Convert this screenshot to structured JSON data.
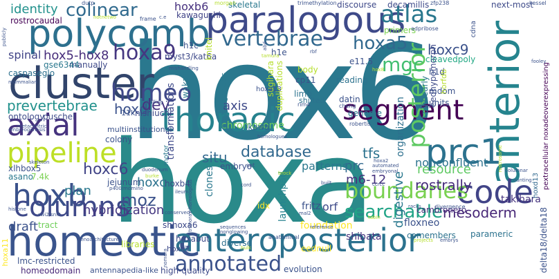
{
  "words": [
    {
      "text": "hox6",
      "color": "#2a788e"
    },
    {
      "text": "hoxa",
      "color": "#2a8a8a"
    },
    {
      "text": "cluster",
      "color": "#31446b"
    },
    {
      "text": "paralogous",
      "color": "#3e4a89"
    },
    {
      "text": "polycomb",
      "color": "#2d708e"
    },
    {
      "text": "homeotic",
      "color": "#3a548c"
    },
    {
      "text": "anteroposterior",
      "color": "#2c728e"
    },
    {
      "text": "anterior",
      "color": "#25848e"
    },
    {
      "text": "thoracic",
      "color": "#26828e"
    },
    {
      "text": "axial",
      "color": "#46337e"
    },
    {
      "text": "segment",
      "color": "#440154"
    },
    {
      "text": "pipeline",
      "color": "#bddf26"
    },
    {
      "text": "hoxb",
      "color": "#3b528b"
    },
    {
      "text": "prc1",
      "color": "#2c728e"
    },
    {
      "text": "code",
      "color": "#414487"
    },
    {
      "text": "columns",
      "color": "#3e4989"
    },
    {
      "text": "hoxa9",
      "color": "#453781"
    },
    {
      "text": "atlas",
      "color": "#2a788e"
    },
    {
      "text": "vertebrae",
      "color": "#31688e"
    },
    {
      "text": "colinear",
      "color": "#306a8e"
    },
    {
      "text": "homeo",
      "color": "#3f4889"
    },
    {
      "text": "posterior",
      "color": "#5ec962"
    },
    {
      "text": "boundaries",
      "color": "#7ad151"
    },
    {
      "text": "annotated",
      "color": "#3b528b"
    },
    {
      "text": "searchable",
      "color": "#20a486"
    },
    {
      "text": "hoxa5",
      "color": "#31688e"
    },
    {
      "text": "mgc",
      "color": "#42be71"
    },
    {
      "text": "database",
      "color": "#31688e"
    },
    {
      "text": "hoxc6",
      "color": "#414487"
    },
    {
      "text": "hoxc9",
      "color": "#3b528b"
    },
    {
      "text": "prevertebrae",
      "color": "#21918c"
    },
    {
      "text": "hox5-hox8",
      "color": "#472d7b"
    },
    {
      "text": "identity",
      "color": "#21918c"
    },
    {
      "text": "moz",
      "color": "#3b528b"
    },
    {
      "text": "hoxb6",
      "color": "#46307e"
    },
    {
      "text": "hoxd",
      "color": "#3b528b"
    },
    {
      "text": "dev",
      "color": "#46327e"
    },
    {
      "text": "axis",
      "color": "#3e4a89"
    },
    {
      "text": "situ",
      "color": "#31688e"
    },
    {
      "text": "tfs",
      "color": "#2c728e"
    },
    {
      "text": "resource",
      "color": "#5ec962"
    },
    {
      "text": "mesoderm",
      "color": "#482878"
    },
    {
      "text": "rostrally",
      "color": "#472d7b"
    },
    {
      "text": "digestive",
      "color": "#2a788e"
    },
    {
      "text": "hybridization",
      "color": "#453781"
    },
    {
      "text": "prc",
      "color": "#31688e"
    },
    {
      "text": "m6-12",
      "color": "#46337e"
    },
    {
      "text": "spinal",
      "color": "#414487"
    },
    {
      "text": "plan",
      "color": "#2a788e"
    },
    {
      "text": "draft",
      "color": "#3b528b"
    },
    {
      "text": "hoxc",
      "color": "#2c728e"
    },
    {
      "text": "chromosome",
      "color": "#6ece58"
    },
    {
      "text": "transformations",
      "color": "#3e4989"
    },
    {
      "text": "organization",
      "color": "#2d708e"
    },
    {
      "text": "caspaseglo",
      "color": "#2d708e"
    },
    {
      "text": "myst3/kat6a",
      "color": "#3e4989"
    },
    {
      "text": "kawaguchi",
      "color": "#414487"
    },
    {
      "text": "wakana",
      "color": "#2a788e"
    },
    {
      "text": "rostrocaudal",
      "color": "#440154"
    },
    {
      "text": "nonconfluent",
      "color": "#2c728e"
    },
    {
      "text": "patterns",
      "color": "#2a788e"
    },
    {
      "text": "embryo",
      "color": "#3b528b"
    },
    {
      "text": "clones",
      "color": "#2a788e"
    },
    {
      "text": "ikawa",
      "color": "#31688e"
    },
    {
      "text": "launchpad",
      "color": "#26828e"
    },
    {
      "text": "orf",
      "color": "#3e4a89"
    },
    {
      "text": "fritz",
      "color": "#3b528b"
    },
    {
      "text": "foundation",
      "color": "#fde725"
    },
    {
      "text": "shibata",
      "color": "#46337e"
    },
    {
      "text": "floxneo",
      "color": "#3b528b"
    },
    {
      "text": "comembers",
      "color": "#2c728e"
    },
    {
      "text": "hoxabut",
      "color": "#3e4a89"
    },
    {
      "text": "diverse",
      "color": "#2d708e"
    },
    {
      "text": "evolution",
      "color": "#3b528b"
    },
    {
      "text": "high-quality",
      "color": "#3e4a89"
    },
    {
      "text": "homeodomain",
      "color": "#482878"
    },
    {
      "text": "antennapedia-like",
      "color": "#3b528b"
    },
    {
      "text": "lmc-restricted",
      "color": "#3b528b"
    },
    {
      "text": "cambronero",
      "color": "#472d7b"
    },
    {
      "text": "takihara",
      "color": "#46337e"
    },
    {
      "text": "parameric",
      "color": "#2c728e"
    },
    {
      "text": "delta18/delta18",
      "color": "#3b528b"
    },
    {
      "text": "pextracellular noxadeoverexpressing",
      "color": "#440154"
    },
    {
      "text": "next-most",
      "color": "#3e4a89"
    },
    {
      "text": "decamillis",
      "color": "#3e4989"
    },
    {
      "text": "discourse",
      "color": "#3e4989"
    },
    {
      "text": "skeletal",
      "color": "#2a788e"
    },
    {
      "text": "reading",
      "color": "#2c728e"
    },
    {
      "text": "datin",
      "color": "#3b528b"
    },
    {
      "text": "genome",
      "color": "#2a788e"
    },
    {
      "text": "limb",
      "color": "#2c728e"
    },
    {
      "text": "cp11",
      "color": "#3b528b"
    },
    {
      "text": "e11.5",
      "color": "#3b528b"
    },
    {
      "text": "primers",
      "color": "#7ad151"
    },
    {
      "text": "cleavedpoly",
      "color": "#22a884"
    },
    {
      "text": "collinearly",
      "color": "#2a788e"
    },
    {
      "text": "eedhypomorph",
      "color": "#3e4a89"
    },
    {
      "text": "units",
      "color": "#3b528b"
    },
    {
      "text": "mdom",
      "color": "#3b528b"
    },
    {
      "text": "hoxd13",
      "color": "#31688e"
    },
    {
      "text": "manually",
      "color": "#3e4989"
    },
    {
      "text": "gse6344",
      "color": "#2a788e"
    },
    {
      "text": "ontology",
      "color": "#3e4a89"
    },
    {
      "text": "puschel",
      "color": "#3e4a89"
    },
    {
      "text": "nishiuchi",
      "color": "#3e4989"
    },
    {
      "text": "11k",
      "color": "#3b528b"
    },
    {
      "text": "colony",
      "color": "#3b528b"
    },
    {
      "text": "multiinstitutional",
      "color": "#3b528b"
    },
    {
      "text": "xlhbox5",
      "color": "#3b528b"
    },
    {
      "text": "asano",
      "color": "#2a788e"
    },
    {
      "text": "7.4k",
      "color": "#7ad151"
    },
    {
      "text": "jejunum",
      "color": "#3b528b"
    },
    {
      "text": "tract",
      "color": "#6ece58"
    },
    {
      "text": "hoxb4",
      "color": "#3e4a89"
    },
    {
      "text": "idx",
      "color": "#fde725"
    },
    {
      "text": "shhoxa6",
      "color": "#3e4a89"
    },
    {
      "text": "hoxa7",
      "color": "#3e4a89"
    },
    {
      "text": "eednull",
      "color": "#fde725"
    },
    {
      "text": "hoxa11",
      "color": "#fde725"
    },
    {
      "text": "libraries",
      "color": "#b5de2b"
    },
    {
      "text": "h1e",
      "color": "#3b528b"
    },
    {
      "text": "h1c",
      "color": "#3b528b"
    },
    {
      "text": "h1d",
      "color": "#3b528b"
    },
    {
      "text": "knitel",
      "color": "#b5de2b"
    },
    {
      "text": "sugihara",
      "color": "#b5de2b"
    },
    {
      "text": "duplications",
      "color": "#b5de2b"
    },
    {
      "text": "organogenesis",
      "color": "#2a788e"
    },
    {
      "text": "hoxa13",
      "color": "#3b528b"
    },
    {
      "text": "horfdb",
      "color": "#b5de2b"
    },
    {
      "text": "cdna",
      "color": "#3b528b"
    },
    {
      "text": "rim4",
      "color": "#3b528b"
    },
    {
      "text": "divergence",
      "color": "#3b528b"
    },
    {
      "text": "body",
      "color": "#b5de2b"
    },
    {
      "text": "motor",
      "color": "#2a788e"
    },
    {
      "text": "trimethylation",
      "color": "#3b528b"
    },
    {
      "text": "morgan",
      "color": "#b5de2b"
    },
    {
      "text": "dutp",
      "color": "#3b528b"
    },
    {
      "text": "zfp238",
      "color": "#3b528b"
    },
    {
      "text": "adpribose",
      "color": "#3b528b"
    },
    {
      "text": "kessel",
      "color": "#3b528b"
    },
    {
      "text": "shifted",
      "color": "#2c728e"
    },
    {
      "text": "homologues",
      "color": "#3b528b"
    },
    {
      "text": "robertis",
      "color": "#3b528b"
    },
    {
      "text": "cheng",
      "color": "#3b528b"
    },
    {
      "text": "gruss",
      "color": "#3b528b"
    },
    {
      "text": "mammalian",
      "color": "#3b528b"
    },
    {
      "text": "mishandling",
      "color": "#3b528b"
    },
    {
      "text": "balling",
      "color": "#3b528b"
    },
    {
      "text": "frame",
      "color": "#3b528b"
    },
    {
      "text": "publicly",
      "color": "#3b528b"
    },
    {
      "text": "p400/mdmino",
      "color": "#3b528b"
    },
    {
      "text": "duodenum",
      "color": "#3b528b"
    },
    {
      "text": "burke",
      "color": "#b5de2b"
    },
    {
      "text": "skeleton",
      "color": "#3b528b"
    },
    {
      "text": "embryonal",
      "color": "#3b528b"
    },
    {
      "text": "automated",
      "color": "#3b528b"
    },
    {
      "text": "built",
      "color": "#3b528b"
    },
    {
      "text": "brock",
      "color": "#b5de2b"
    },
    {
      "text": "cord",
      "color": "#3b528b"
    },
    {
      "text": "ccrcc",
      "color": "#3b528b"
    },
    {
      "text": "racks",
      "color": "#3b528b"
    },
    {
      "text": "columnar",
      "color": "#3b528b"
    },
    {
      "text": "counting",
      "color": "#3b528b"
    },
    {
      "text": "histone",
      "color": "#3b528b"
    },
    {
      "text": "conserved",
      "color": "#3b528b"
    },
    {
      "text": "swi2/snf2",
      "color": "#3b528b"
    },
    {
      "text": "sequences",
      "color": "#3b528b"
    },
    {
      "text": "reference",
      "color": "#3b528b"
    },
    {
      "text": "tabin",
      "color": "#b5de2b"
    },
    {
      "text": "embrys",
      "color": "#3b528b"
    },
    {
      "text": "nonglowing",
      "color": "#3b528b"
    },
    {
      "text": "anatomical",
      "color": "#3b528b"
    },
    {
      "text": "mal2",
      "color": "#3b528b"
    },
    {
      "text": "bulk",
      "color": "#b5de2b"
    },
    {
      "text": "projects",
      "color": "#b5de2b"
    },
    {
      "text": "lie",
      "color": "#3b528b"
    },
    {
      "text": "genoarchitecture",
      "color": "#3b528b"
    },
    {
      "text": "metacentric",
      "color": "#3b528b"
    },
    {
      "text": "embryogenesis",
      "color": "#3b528b"
    },
    {
      "text": "set",
      "color": "#3b528b"
    },
    {
      "text": "ileum",
      "color": "#3b528b"
    },
    {
      "text": "trithorax-homologous",
      "color": "#3b528b"
    },
    {
      "text": "nomura",
      "color": "#3b528b"
    },
    {
      "text": "hox8",
      "color": "#b5de2b"
    },
    {
      "text": "abd",
      "color": "#3b528b"
    },
    {
      "text": "tamura",
      "color": "#b5de2b"
    },
    {
      "text": "fooley",
      "color": "#3b528b"
    },
    {
      "text": "hoxa2",
      "color": "#3b528b"
    },
    {
      "text": "rbf",
      "color": "#3b528b"
    },
    {
      "text": "c.e",
      "color": "#3b528b"
    },
    {
      "text": "notnetwo",
      "color": "#b5de2b"
    },
    {
      "text": "rostrosome",
      "color": "#b5de2b"
    }
  ]
}
